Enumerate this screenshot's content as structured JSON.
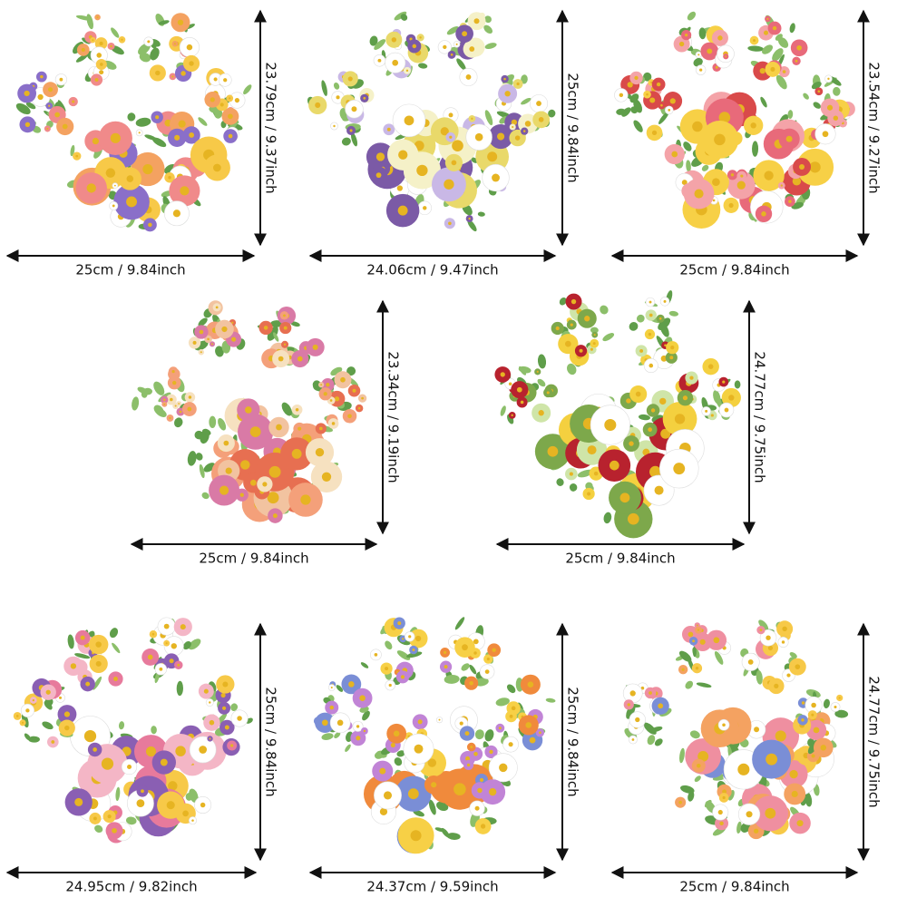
{
  "products": [
    {
      "width_label": "25cm / 9.84inch",
      "height_label": "23.79cm / 9.37inch"
    },
    {
      "width_label": "24.06cm / 9.47inch",
      "height_label": "25cm / 9.84inch"
    },
    {
      "width_label": "25cm / 9.84inch",
      "height_label": "23.54cm / 9.27inch"
    },
    {
      "width_label": "25cm / 9.84inch",
      "height_label": "23.34cm / 9.19inch"
    },
    {
      "width_label": "25cm / 9.84inch",
      "height_label": "24.77cm / 9.75inch"
    },
    {
      "width_label": "24.95cm / 9.82inch",
      "height_label": "25cm / 9.84inch"
    },
    {
      "width_label": "24.37cm / 9.59inch",
      "height_label": "25cm / 9.84inch"
    },
    {
      "width_label": "25cm / 9.84inch",
      "height_label": "24.77cm / 9.75inch"
    }
  ]
}
